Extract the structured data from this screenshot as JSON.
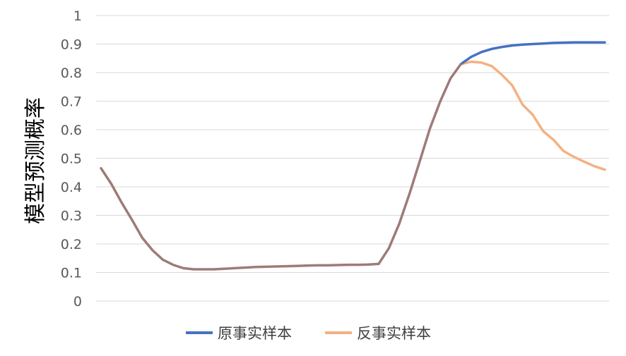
{
  "chart_data": {
    "type": "line",
    "ylabel": "模型预测概率",
    "xlabel": "",
    "ylim": [
      0,
      1
    ],
    "yticks": [
      "0",
      "0.1",
      "0.2",
      "0.3",
      "0.4",
      "0.5",
      "0.6",
      "0.7",
      "0.8",
      "0.9",
      "1"
    ],
    "grid": true,
    "legend_position": "bottom",
    "series": [
      {
        "name": "原事实样本",
        "color": "#4472C4",
        "values": [
          0.465,
          0.41,
          0.345,
          0.285,
          0.222,
          0.178,
          0.145,
          0.127,
          0.115,
          0.111,
          0.111,
          0.111,
          0.113,
          0.115,
          0.117,
          0.119,
          0.12,
          0.121,
          0.122,
          0.123,
          0.124,
          0.125,
          0.125,
          0.126,
          0.127,
          0.127,
          0.128,
          0.13,
          0.185,
          0.27,
          0.375,
          0.49,
          0.605,
          0.7,
          0.78,
          0.83,
          0.855,
          0.872,
          0.883,
          0.89,
          0.895,
          0.898,
          0.9,
          0.902,
          0.904,
          0.905,
          0.906,
          0.906,
          0.906,
          0.906
        ]
      },
      {
        "name": "反事实样本",
        "color": "#F4B183",
        "values": [
          0.465,
          0.41,
          0.345,
          0.285,
          0.222,
          0.178,
          0.145,
          0.127,
          0.115,
          0.111,
          0.111,
          0.111,
          0.113,
          0.115,
          0.117,
          0.119,
          0.12,
          0.121,
          0.122,
          0.123,
          0.124,
          0.125,
          0.125,
          0.126,
          0.127,
          0.127,
          0.128,
          0.13,
          0.185,
          0.27,
          0.375,
          0.49,
          0.605,
          0.7,
          0.78,
          0.83,
          0.838,
          0.835,
          0.823,
          0.792,
          0.755,
          0.688,
          0.652,
          0.595,
          0.565,
          0.525,
          0.505,
          0.488,
          0.472,
          0.46
        ]
      }
    ],
    "overlap_color": "#9E7B78",
    "overlap_until_index": 35
  }
}
